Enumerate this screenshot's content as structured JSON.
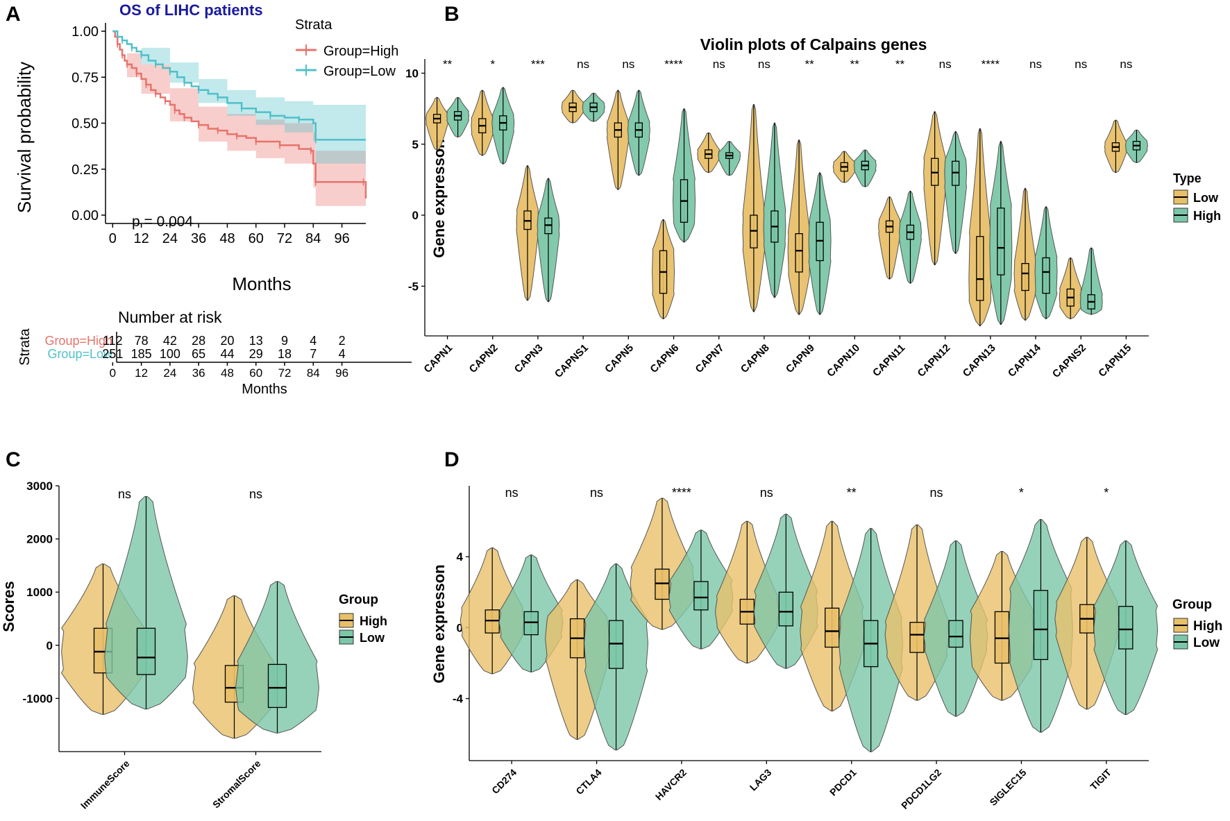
{
  "colors": {
    "km_high": "#E8736C",
    "km_low": "#4FC0C8",
    "violin_a": "#E8C06A",
    "violin_b": "#7CC7A9",
    "title_blue": "#1A1A9C"
  },
  "panel_labels": [
    "A",
    "B",
    "C",
    "D"
  ],
  "chart_data": [
    {
      "type": "line",
      "title": "OS of LIHC patients",
      "xlabel": "Months",
      "ylabel": "Survival probability",
      "xlim": [
        -3,
        106
      ],
      "ylim": [
        0,
        1
      ],
      "xticks": [
        0,
        12,
        24,
        36,
        48,
        60,
        72,
        84,
        96
      ],
      "yticks": [
        0,
        0.25,
        0.5,
        0.75,
        1
      ],
      "ytick_labels": [
        "0.00",
        "0.25",
        "0.50",
        "0.75",
        "1.00"
      ],
      "pvalue_text": "p = 0.004",
      "legend": {
        "title": "Strata",
        "entries": [
          "Group=High",
          "Group=Low"
        ]
      },
      "series": [
        {
          "name": "Group=High",
          "points": [
            [
              0,
              1
            ],
            [
              1,
              0.97
            ],
            [
              2,
              0.93
            ],
            [
              3,
              0.9
            ],
            [
              4,
              0.87
            ],
            [
              5,
              0.84
            ],
            [
              6,
              0.82
            ],
            [
              8,
              0.8
            ],
            [
              10,
              0.77
            ],
            [
              12,
              0.74
            ],
            [
              14,
              0.71
            ],
            [
              16,
              0.68
            ],
            [
              18,
              0.66
            ],
            [
              20,
              0.64
            ],
            [
              22,
              0.62
            ],
            [
              24,
              0.6
            ],
            [
              26,
              0.57
            ],
            [
              28,
              0.55
            ],
            [
              30,
              0.53
            ],
            [
              33,
              0.51
            ],
            [
              36,
              0.49
            ],
            [
              40,
              0.47
            ],
            [
              44,
              0.46
            ],
            [
              48,
              0.44
            ],
            [
              52,
              0.43
            ],
            [
              56,
              0.42
            ],
            [
              60,
              0.4
            ],
            [
              66,
              0.4
            ],
            [
              70,
              0.38
            ],
            [
              78,
              0.36
            ],
            [
              83,
              0.35
            ],
            [
              84,
              0.28
            ],
            [
              85,
              0.18
            ],
            [
              95,
              0.18
            ],
            [
              105,
              0.18
            ],
            [
              106,
              0.09
            ]
          ],
          "ci_upper": [
            [
              0,
              1
            ],
            [
              6,
              0.88
            ],
            [
              12,
              0.82
            ],
            [
              24,
              0.69
            ],
            [
              36,
              0.59
            ],
            [
              48,
              0.55
            ],
            [
              60,
              0.52
            ],
            [
              72,
              0.5
            ],
            [
              84,
              0.45
            ],
            [
              85,
              0.35
            ],
            [
              106,
              0.35
            ]
          ],
          "ci_lower": [
            [
              0,
              1
            ],
            [
              6,
              0.75
            ],
            [
              12,
              0.66
            ],
            [
              24,
              0.51
            ],
            [
              36,
              0.4
            ],
            [
              48,
              0.35
            ],
            [
              60,
              0.31
            ],
            [
              72,
              0.28
            ],
            [
              84,
              0.15
            ],
            [
              85,
              0.05
            ],
            [
              106,
              0.02
            ]
          ]
        },
        {
          "name": "Group=Low",
          "points": [
            [
              0,
              1
            ],
            [
              2,
              0.97
            ],
            [
              4,
              0.95
            ],
            [
              6,
              0.93
            ],
            [
              8,
              0.91
            ],
            [
              10,
              0.89
            ],
            [
              12,
              0.87
            ],
            [
              15,
              0.84
            ],
            [
              18,
              0.82
            ],
            [
              21,
              0.8
            ],
            [
              24,
              0.78
            ],
            [
              27,
              0.75
            ],
            [
              30,
              0.72
            ],
            [
              33,
              0.7
            ],
            [
              36,
              0.68
            ],
            [
              40,
              0.66
            ],
            [
              44,
              0.64
            ],
            [
              48,
              0.61
            ],
            [
              54,
              0.58
            ],
            [
              60,
              0.56
            ],
            [
              66,
              0.54
            ],
            [
              72,
              0.53
            ],
            [
              78,
              0.52
            ],
            [
              84,
              0.5
            ],
            [
              85,
              0.41
            ],
            [
              106,
              0.41
            ]
          ],
          "ci_upper": [
            [
              0,
              1
            ],
            [
              12,
              0.91
            ],
            [
              24,
              0.83
            ],
            [
              36,
              0.74
            ],
            [
              48,
              0.68
            ],
            [
              60,
              0.64
            ],
            [
              72,
              0.62
            ],
            [
              84,
              0.6
            ],
            [
              106,
              0.59
            ]
          ],
          "ci_lower": [
            [
              0,
              1
            ],
            [
              12,
              0.82
            ],
            [
              24,
              0.72
            ],
            [
              36,
              0.61
            ],
            [
              48,
              0.54
            ],
            [
              60,
              0.49
            ],
            [
              72,
              0.45
            ],
            [
              84,
              0.4
            ],
            [
              85,
              0.28
            ],
            [
              106,
              0.28
            ]
          ]
        }
      ]
    },
    {
      "type": "table",
      "title": "Number at risk",
      "ylabel": "Strata",
      "xlabel": "Months",
      "row_labels": [
        "Group=High",
        "Group=Low"
      ],
      "columns": [
        "0",
        "12",
        "24",
        "36",
        "48",
        "60",
        "72",
        "84",
        "96"
      ],
      "rows": [
        [
          "112",
          "78",
          "42",
          "28",
          "20",
          "13",
          "9",
          "4",
          "2"
        ],
        [
          "251",
          "185",
          "100",
          "65",
          "44",
          "29",
          "18",
          "7",
          "4"
        ]
      ]
    },
    {
      "type": "violin",
      "title": "Violin plots of Calpains genes",
      "xlabel": "",
      "ylabel": "Gene expresson",
      "ylim": [
        -8.5,
        11
      ],
      "yticks": [
        -5,
        0,
        5,
        10
      ],
      "legend": {
        "title": "Type",
        "entries": [
          "Low",
          "High"
        ]
      },
      "categories": [
        "CAPN1",
        "CAPN2",
        "CAPN3",
        "CAPNS1",
        "CAPN5",
        "CAPN6",
        "CAPN7",
        "CAPN8",
        "CAPN9",
        "CAPN10",
        "CAPN11",
        "CAPN12",
        "CAPN13",
        "CAPN14",
        "CAPNS2",
        "CAPN15"
      ],
      "significance": [
        "**",
        "*",
        "***",
        "ns",
        "ns",
        "****",
        "ns",
        "ns",
        "**",
        "**",
        "**",
        "ns",
        "****",
        "ns",
        "ns",
        "ns"
      ],
      "series": [
        {
          "name": "Low",
          "median": [
            6.8,
            6.3,
            -0.4,
            7.6,
            6.0,
            -4.0,
            4.3,
            -1.1,
            -2.5,
            3.4,
            -0.8,
            3.0,
            -4.5,
            -4.1,
            -5.8,
            4.8
          ],
          "q1": [
            6.5,
            5.8,
            -1.0,
            7.3,
            5.5,
            -5.5,
            4.0,
            -2.3,
            -4.0,
            3.1,
            -1.2,
            2.1,
            -6.0,
            -5.3,
            -6.4,
            4.5
          ],
          "q3": [
            7.1,
            6.8,
            0.3,
            7.9,
            6.5,
            -2.5,
            4.6,
            0.0,
            -1.3,
            3.7,
            -0.4,
            4.0,
            -1.5,
            -3.4,
            -5.2,
            5.1
          ],
          "min": [
            4.6,
            4.2,
            -6.0,
            6.5,
            1.8,
            -7.3,
            3.0,
            -6.8,
            -7.0,
            2.3,
            -4.5,
            -3.5,
            -7.8,
            -7.4,
            -7.3,
            3.0
          ],
          "max": [
            8.3,
            8.8,
            3.5,
            8.8,
            8.8,
            -0.3,
            5.8,
            7.8,
            5.3,
            4.5,
            1.3,
            7.3,
            6.1,
            1.9,
            -3.0,
            6.7
          ]
        },
        {
          "name": "High",
          "median": [
            7.0,
            6.5,
            -0.7,
            7.6,
            6.0,
            1.0,
            4.2,
            -0.8,
            -1.8,
            3.5,
            -1.2,
            3.0,
            -2.3,
            -4.0,
            -6.1,
            4.9
          ],
          "q1": [
            6.7,
            6.0,
            -1.3,
            7.3,
            5.5,
            -0.5,
            4.0,
            -1.9,
            -3.2,
            3.2,
            -1.7,
            2.1,
            -4.2,
            -5.5,
            -6.6,
            4.6
          ],
          "q3": [
            7.3,
            7.0,
            -0.2,
            7.9,
            6.5,
            2.5,
            4.4,
            0.3,
            -0.5,
            3.8,
            -0.7,
            3.8,
            0.5,
            -3.0,
            -5.6,
            5.2
          ],
          "min": [
            5.5,
            3.6,
            -6.1,
            6.6,
            2.8,
            -1.9,
            2.8,
            -5.8,
            -7.0,
            2.0,
            -4.8,
            -2.7,
            -7.7,
            -7.3,
            -7.0,
            3.7
          ],
          "max": [
            8.3,
            9.0,
            2.6,
            8.6,
            8.8,
            7.5,
            5.2,
            6.5,
            3.0,
            4.6,
            1.7,
            5.9,
            5.2,
            0.6,
            -2.3,
            6.0
          ]
        }
      ]
    },
    {
      "type": "violin",
      "title": "",
      "xlabel": "",
      "ylabel": "Scores",
      "ylim": [
        -2000,
        3000
      ],
      "yticks": [
        -1000,
        0,
        1000,
        2000,
        3000
      ],
      "legend": {
        "title": "Group",
        "entries": [
          "High",
          "Low"
        ]
      },
      "categories": [
        "ImmuneScore",
        "StromalScore"
      ],
      "significance": [
        "ns",
        "ns"
      ],
      "series": [
        {
          "name": "High",
          "median": [
            -120,
            -800
          ],
          "q1": [
            -520,
            -1070
          ],
          "q3": [
            320,
            -380
          ],
          "min": [
            -1300,
            -1750
          ],
          "max": [
            1530,
            930
          ]
        },
        {
          "name": "Low",
          "median": [
            -230,
            -800
          ],
          "q1": [
            -550,
            -1170
          ],
          "q3": [
            320,
            -360
          ],
          "min": [
            -1200,
            -1650
          ],
          "max": [
            2800,
            1200
          ]
        }
      ]
    },
    {
      "type": "violin",
      "title": "",
      "xlabel": "",
      "ylabel": "Gene expresson",
      "ylim": [
        -7.5,
        8
      ],
      "yticks": [
        -4,
        0,
        4
      ],
      "legend": {
        "title": "Group",
        "entries": [
          "High",
          "Low"
        ]
      },
      "categories": [
        "CD274",
        "CTLA4",
        "HAVCR2",
        "LAG3",
        "PDCD1",
        "PDCD1LG2",
        "SIGLEC15",
        "TIGIT"
      ],
      "significance": [
        "ns",
        "ns",
        "****",
        "ns",
        "**",
        "ns",
        "*",
        "*"
      ],
      "series": [
        {
          "name": "High",
          "median": [
            0.4,
            -0.6,
            2.5,
            0.9,
            -0.2,
            -0.4,
            -0.6,
            0.5
          ],
          "q1": [
            -0.3,
            -1.7,
            1.6,
            0.2,
            -1.1,
            -1.4,
            -2.0,
            -0.3
          ],
          "q3": [
            1.0,
            0.5,
            3.3,
            1.6,
            1.1,
            0.3,
            0.9,
            1.3
          ],
          "min": [
            -2.6,
            -6.3,
            -0.1,
            -2.0,
            -4.7,
            -4.1,
            -4.1,
            -4.6
          ],
          "max": [
            4.5,
            2.7,
            7.3,
            6.0,
            6.0,
            5.8,
            4.3,
            5.1
          ]
        },
        {
          "name": "Low",
          "median": [
            0.3,
            -0.9,
            1.7,
            0.9,
            -0.9,
            -0.5,
            -0.1,
            -0.1
          ],
          "q1": [
            -0.4,
            -2.3,
            1.0,
            0.1,
            -2.2,
            -1.1,
            -1.8,
            -1.2
          ],
          "q3": [
            0.9,
            0.4,
            2.6,
            2.0,
            0.4,
            0.4,
            2.1,
            1.2
          ],
          "min": [
            -2.5,
            -6.9,
            -1.2,
            -2.3,
            -7.0,
            -5.0,
            -5.9,
            -4.9
          ],
          "max": [
            4.1,
            3.6,
            5.5,
            6.4,
            5.6,
            4.9,
            6.1,
            4.9
          ]
        }
      ]
    }
  ]
}
